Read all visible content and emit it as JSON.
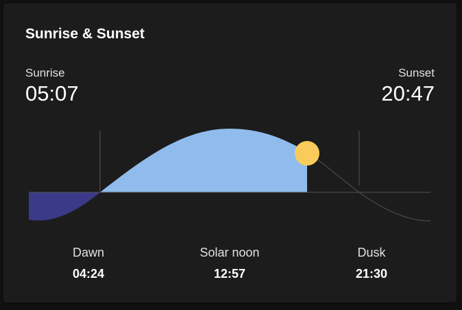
{
  "card": {
    "title": "Sunrise & Sunset"
  },
  "sunrise": {
    "label": "Sunrise",
    "time": "05:07"
  },
  "sunset": {
    "label": "Sunset",
    "time": "20:47"
  },
  "stats": [
    {
      "label": "Dawn",
      "time": "04:24"
    },
    {
      "label": "Solar noon",
      "time": "12:57"
    },
    {
      "label": "Dusk",
      "time": "21:30"
    }
  ],
  "colors": {
    "day": "#8fbcec",
    "night": "#3a3a88",
    "sun": "#f9cb5b",
    "line": "#555555",
    "text": "#ffffff"
  }
}
